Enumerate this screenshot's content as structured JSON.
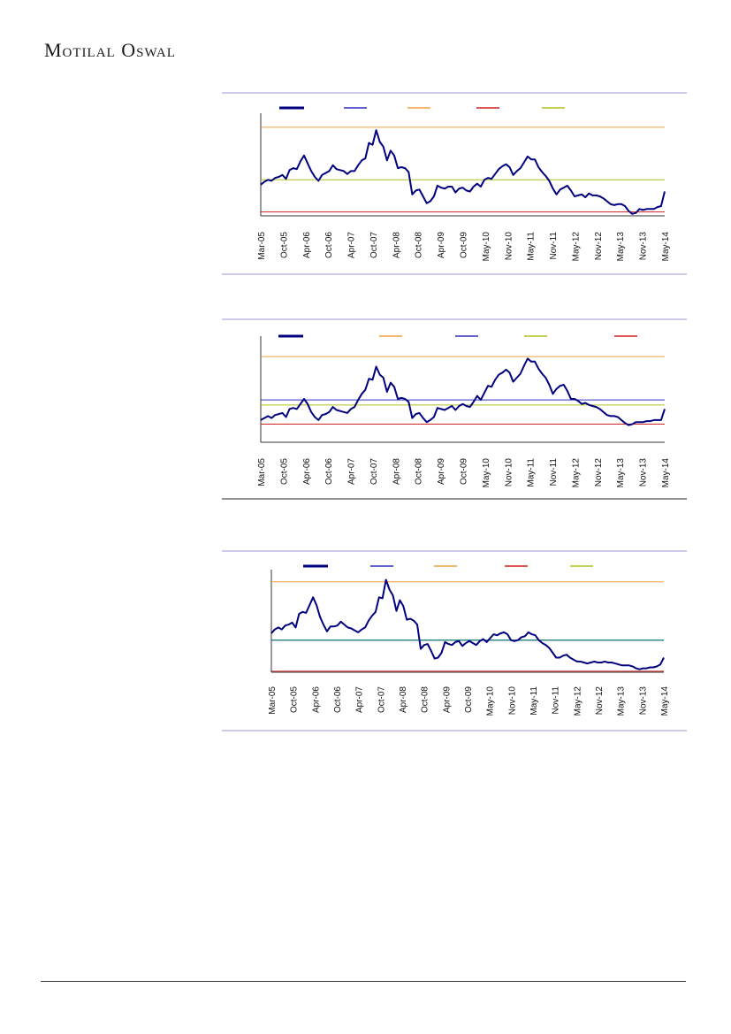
{
  "header": {
    "brand": "Motilal Oswal"
  },
  "colors": {
    "series": "#000080",
    "rule_blue": "#3030c0",
    "orange": "#f0a040",
    "red": "#d02020",
    "olive": "#b0c020",
    "frame": "#9a9ad0"
  },
  "x_ticks": [
    "Mar-05",
    "Oct-05",
    "Apr-06",
    "Oct-06",
    "Apr-07",
    "Oct-07",
    "Apr-08",
    "Oct-08",
    "Apr-09",
    "Oct-09",
    "May-10",
    "Nov-10",
    "May-11",
    "Nov-11",
    "May-12",
    "Nov-12",
    "May-13",
    "Nov-13",
    "May-14"
  ],
  "chart_data": [
    {
      "type": "line",
      "ylim": [
        0,
        100
      ],
      "legend_placement": "top",
      "legend_swatches": [
        "#000080",
        "#3030c0",
        "#f0a040",
        "#d02020",
        "#b0c020"
      ],
      "hlines": [
        {
          "color": "#f0a040",
          "value": 91
        },
        {
          "color": "#b0c020",
          "value": 37
        },
        {
          "color": "#d02020",
          "value": 4
        }
      ],
      "series": [
        {
          "values": [
            32,
            35,
            37,
            36,
            39,
            40,
            42,
            38,
            47,
            49,
            48,
            56,
            62,
            54,
            46,
            40,
            36,
            42,
            44,
            46,
            52,
            48,
            47,
            46,
            43,
            46,
            46,
            52,
            57,
            59,
            75,
            73,
            88,
            76,
            71,
            57,
            67,
            62,
            49,
            50,
            49,
            45,
            22,
            26,
            27,
            20,
            13,
            15,
            20,
            31,
            29,
            28,
            30,
            30,
            24,
            28,
            29,
            26,
            25,
            30,
            33,
            30,
            37,
            39,
            38,
            43,
            48,
            51,
            53,
            50,
            42,
            46,
            49,
            55,
            61,
            58,
            58,
            50,
            45,
            41,
            36,
            28,
            22,
            27,
            29,
            31,
            26,
            20,
            21,
            22,
            19,
            23,
            21,
            21,
            20,
            18,
            15,
            12,
            11,
            12,
            12,
            10,
            5,
            2,
            3,
            7,
            6,
            7,
            7,
            7,
            9,
            10,
            25
          ]
        }
      ]
    },
    {
      "type": "line",
      "ylim": [
        0,
        100
      ],
      "legend_placement": "top",
      "legend_swatches": [
        "#000080",
        "#f0a040",
        "#3030c0",
        "#b0c020",
        "#d02020"
      ],
      "hlines": [
        {
          "color": "#f0a040",
          "value": 85
        },
        {
          "color": "#3030c0",
          "value": 42
        },
        {
          "color": "#b0c020",
          "value": 37
        },
        {
          "color": "#d02020",
          "value": 18
        }
      ],
      "series": [
        {
          "values": [
            22,
            24,
            26,
            24,
            27,
            28,
            29,
            25,
            33,
            34,
            33,
            38,
            43,
            38,
            30,
            25,
            22,
            27,
            28,
            30,
            35,
            32,
            31,
            30,
            29,
            33,
            35,
            42,
            48,
            52,
            63,
            62,
            75,
            67,
            64,
            50,
            59,
            55,
            43,
            44,
            43,
            40,
            24,
            28,
            29,
            24,
            20,
            22,
            25,
            34,
            33,
            32,
            34,
            36,
            32,
            36,
            38,
            36,
            35,
            40,
            46,
            42,
            49,
            56,
            55,
            62,
            67,
            69,
            72,
            69,
            60,
            64,
            68,
            76,
            83,
            80,
            80,
            73,
            68,
            64,
            57,
            48,
            53,
            56,
            57,
            51,
            43,
            43,
            41,
            38,
            39,
            37,
            36,
            35,
            33,
            30,
            27,
            26,
            26,
            25,
            22,
            19,
            17,
            18,
            20,
            20,
            20,
            21,
            21,
            22,
            22,
            22,
            33
          ]
        }
      ]
    },
    {
      "type": "line",
      "ylim": [
        0,
        100
      ],
      "legend_placement": "top",
      "legend_swatches": [
        "#000080",
        "#3030c0",
        "#f0a040",
        "#d02020",
        "#b0c020"
      ],
      "hlines": [
        {
          "color": "#f0a040",
          "value": 93
        },
        {
          "color": "#3030c0",
          "value": 33
        },
        {
          "color": "#008060",
          "value": 33
        },
        {
          "color": "#d02020",
          "value": 1
        }
      ],
      "series": [
        {
          "values": [
            40,
            44,
            46,
            44,
            48,
            49,
            51,
            46,
            60,
            62,
            61,
            69,
            77,
            69,
            57,
            49,
            42,
            47,
            47,
            48,
            52,
            49,
            46,
            45,
            43,
            41,
            44,
            46,
            53,
            58,
            62,
            77,
            76,
            95,
            85,
            79,
            63,
            74,
            68,
            54,
            55,
            53,
            49,
            24,
            28,
            29,
            22,
            14,
            15,
            20,
            31,
            29,
            28,
            31,
            32,
            27,
            30,
            32,
            30,
            28,
            32,
            34,
            31,
            35,
            39,
            38,
            40,
            41,
            39,
            33,
            32,
            33,
            36,
            37,
            41,
            39,
            38,
            33,
            30,
            28,
            25,
            20,
            15,
            15,
            17,
            18,
            15,
            13,
            11,
            11,
            10,
            9,
            10,
            11,
            10,
            10,
            11,
            10,
            10,
            9,
            8,
            7,
            7,
            7,
            6,
            4,
            3,
            4,
            4,
            5,
            5,
            6,
            8,
            15
          ]
        }
      ]
    }
  ]
}
